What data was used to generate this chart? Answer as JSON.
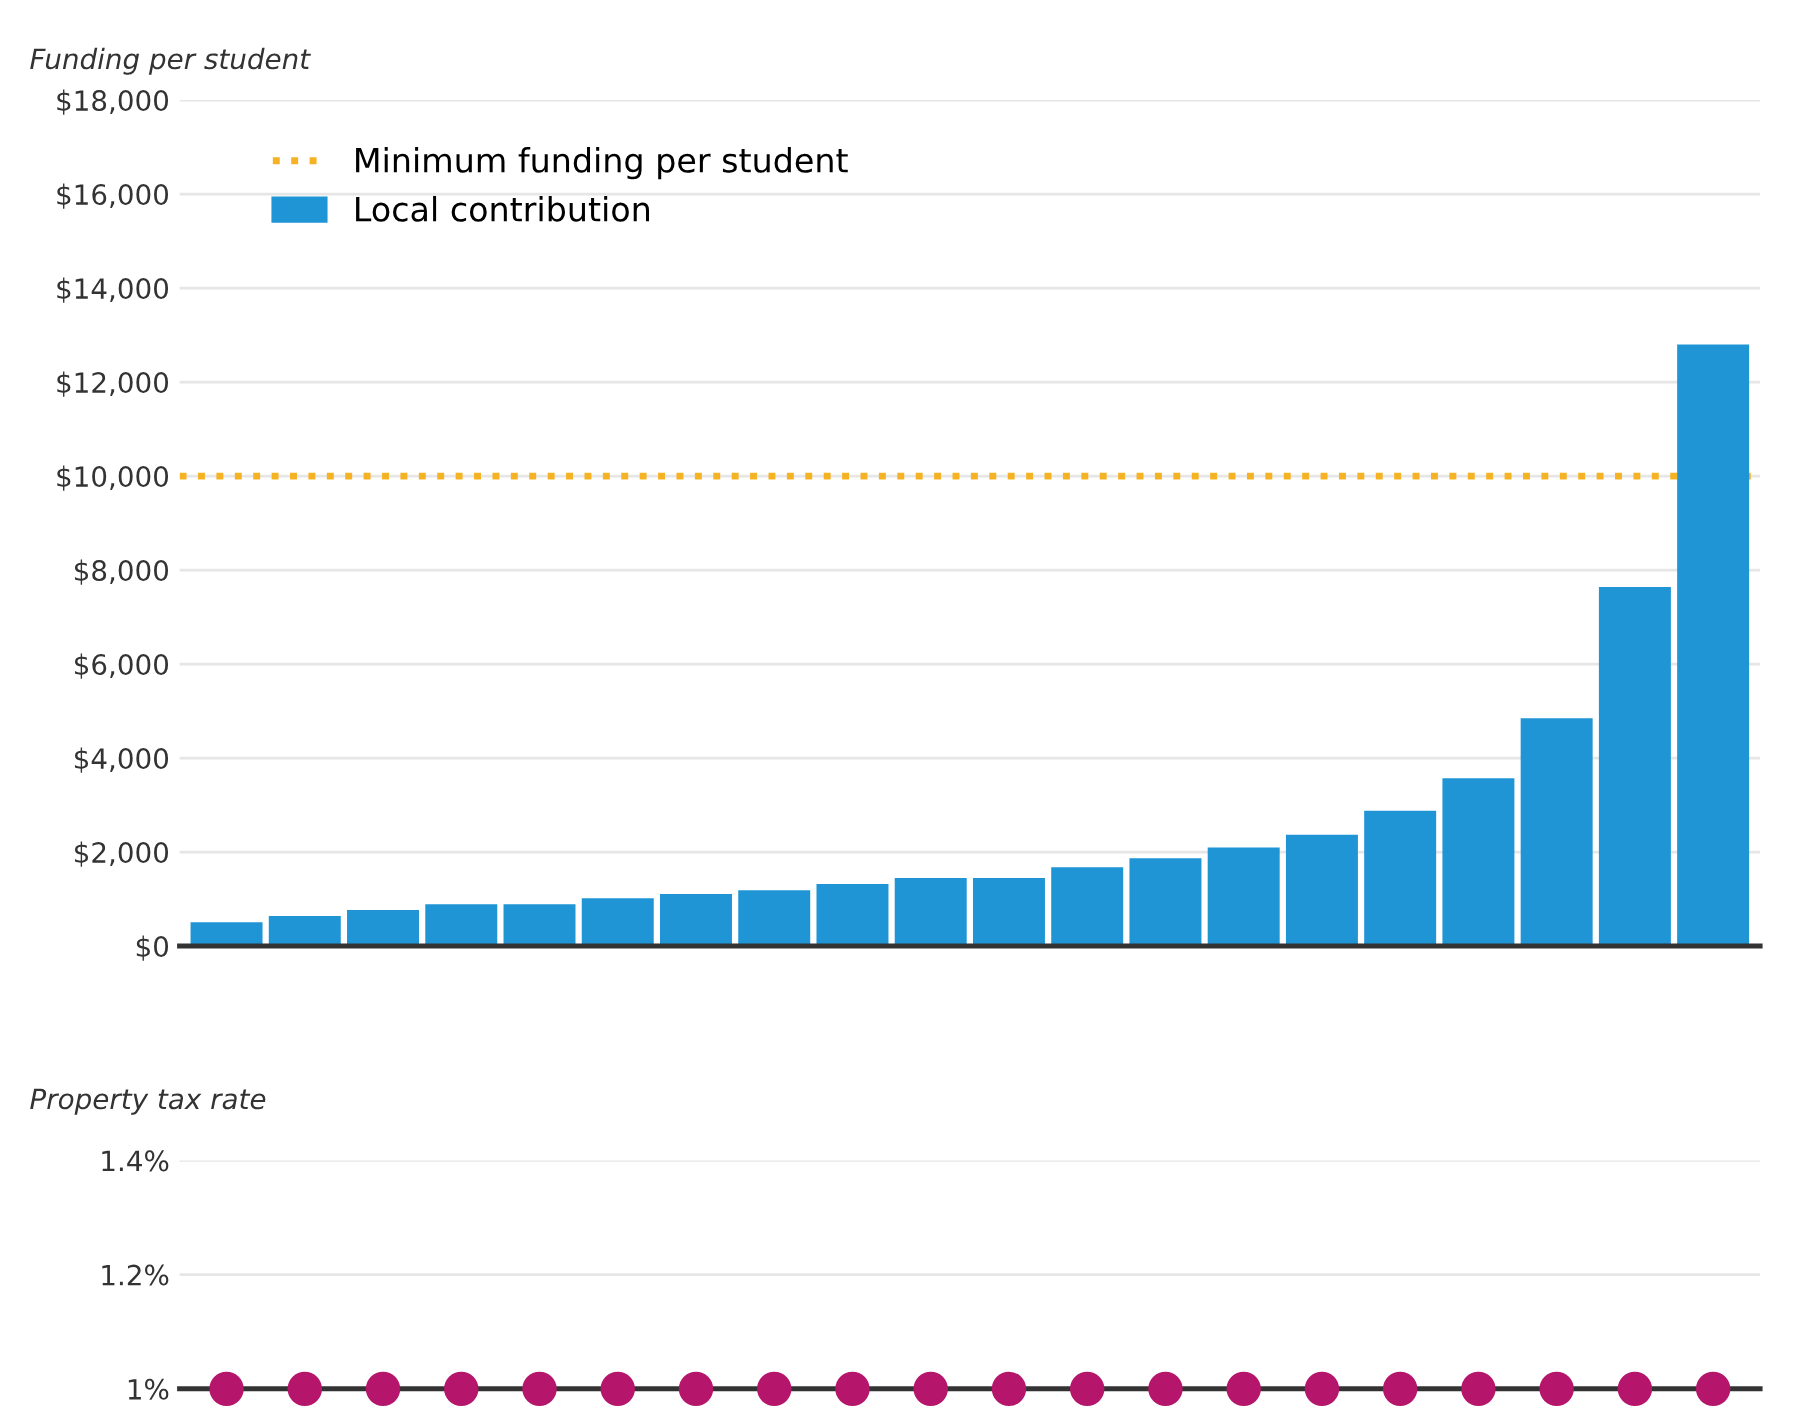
{
  "chart_data": [
    {
      "type": "bar",
      "ylabel": "Funding per student",
      "categories": [
        null,
        null,
        null,
        null,
        null,
        null,
        null,
        null,
        null,
        null,
        null,
        null,
        null,
        null,
        null,
        null,
        null,
        null,
        null,
        null
      ],
      "series": [
        {
          "name": "Local contribution",
          "color": "#1f95d6",
          "values": [
            510,
            640,
            770,
            890,
            890,
            1020,
            1110,
            1190,
            1320,
            1450,
            1450,
            1680,
            1870,
            2100,
            2370,
            2880,
            3570,
            4850,
            7640,
            12800
          ]
        }
      ],
      "ylim": [
        0,
        18000
      ],
      "yticks": [
        {
          "value": 0,
          "label": "$0"
        },
        {
          "value": 2000,
          "label": "$2,000"
        },
        {
          "value": 4000,
          "label": "$4,000"
        },
        {
          "value": 6000,
          "label": "$6,000"
        },
        {
          "value": 8000,
          "label": "$8,000"
        },
        {
          "value": 10000,
          "label": "$10,000"
        },
        {
          "value": 12000,
          "label": "$12,000"
        },
        {
          "value": 14000,
          "label": "$14,000"
        },
        {
          "value": 16000,
          "label": "$16,000"
        },
        {
          "value": 18000,
          "label": "$18,000"
        }
      ],
      "ref_lines": [
        {
          "axis": "y",
          "value": 10000,
          "label": "Minimum funding per student",
          "color": "#f5b324",
          "line_style": "dotted"
        }
      ],
      "grid": "y",
      "legend": "top left",
      "tick_labels": "y"
    },
    {
      "type": "scatter",
      "ylabel": "Property tax rate",
      "categories": [
        null,
        null,
        null,
        null,
        null,
        null,
        null,
        null,
        null,
        null,
        null,
        null,
        null,
        null,
        null,
        null,
        null,
        null,
        null,
        null
      ],
      "series": [
        {
          "color": "#b5166b",
          "values": [
            1,
            1,
            1,
            1,
            1,
            1,
            1,
            1,
            1,
            1,
            1,
            1,
            1,
            1,
            1,
            1,
            1,
            1,
            1,
            1
          ]
        }
      ],
      "ylim": [
        1,
        1.4
      ],
      "yticks": [
        {
          "value": 1,
          "label": "1%"
        },
        {
          "value": 1.2,
          "label": "1.2%"
        },
        {
          "value": 1.4,
          "label": "1.4%"
        }
      ],
      "marker": "circle",
      "grid": "y",
      "tick_labels": "y"
    }
  ]
}
